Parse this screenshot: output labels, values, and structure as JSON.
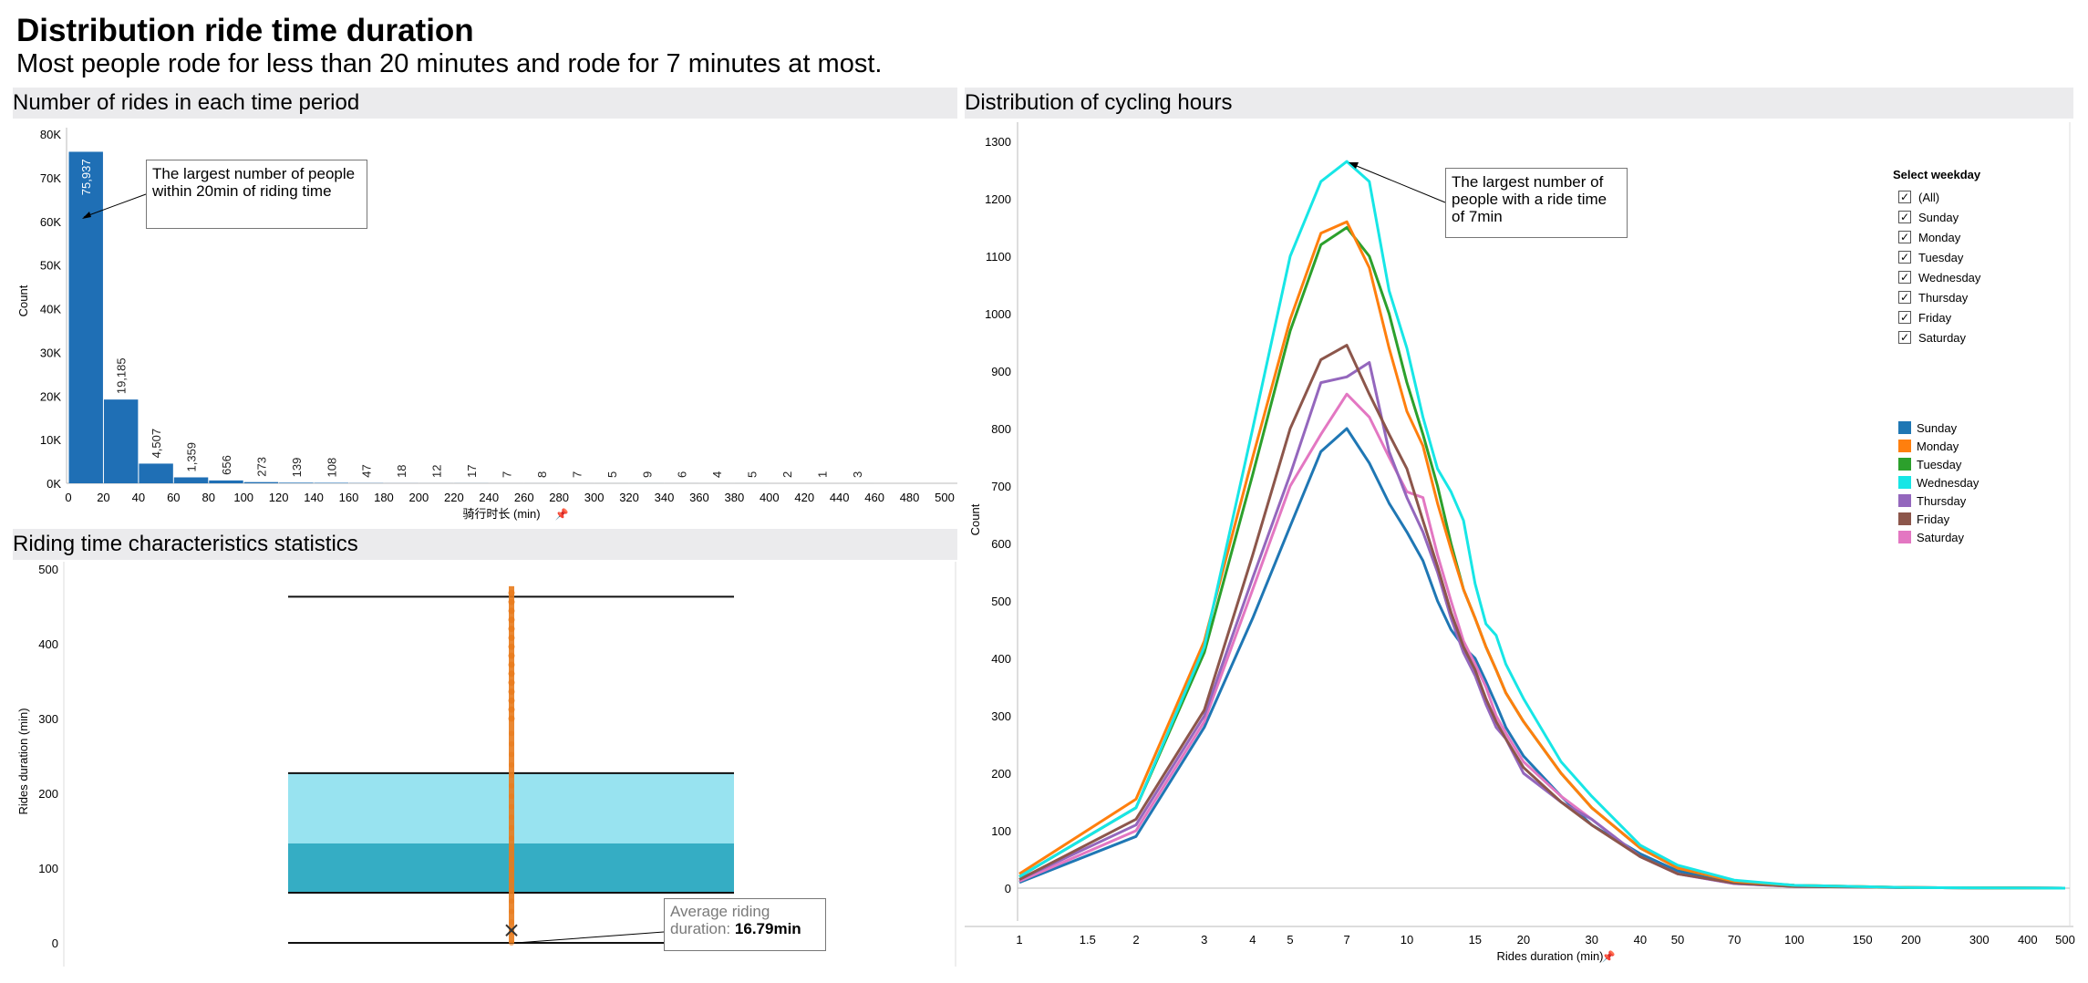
{
  "page": {
    "title": "Distribution ride time duration",
    "subtitle": "Most people rode for less than 20 minutes and rode for 7 minutes at most."
  },
  "panels": {
    "histogram_title": "Number of rides in each time period",
    "boxplot_title": "Riding time characteristics statistics",
    "lines_title": "Distribution of cycling hours"
  },
  "annotations": {
    "histogram": "The largest number of people within 20min of riding time",
    "lines": "The largest number of people with a ride time of 7min",
    "boxplot_label": "Average riding duration:",
    "boxplot_value": "16.79min"
  },
  "filter": {
    "title": "Select weekday",
    "items": [
      "(All)",
      "Sunday",
      "Monday",
      "Tuesday",
      "Wednesday",
      "Thursday",
      "Friday",
      "Saturday"
    ]
  },
  "colors": {
    "bar": "#1f6fb5",
    "Sunday": "#1f77b4",
    "Monday": "#ff7f0e",
    "Tuesday": "#2ca02c",
    "Wednesday": "#17e6e6",
    "Thursday": "#9467bd",
    "Friday": "#8c564b",
    "Saturday": "#e377c2",
    "box_upper": "#98e3f0",
    "box_lower": "#35adc4",
    "points": "#e87b1c"
  },
  "chart_data": [
    {
      "type": "bar",
      "xlabel": "骑行时长 (min)",
      "ylabel": "Count",
      "x_ticks": [
        "0",
        "20",
        "40",
        "60",
        "80",
        "100",
        "120",
        "140",
        "160",
        "180",
        "200",
        "220",
        "240",
        "260",
        "280",
        "300",
        "320",
        "340",
        "360",
        "380",
        "400",
        "420",
        "440",
        "460",
        "480",
        "500"
      ],
      "y_ticks": [
        "0K",
        "10K",
        "20K",
        "30K",
        "40K",
        "50K",
        "60K",
        "70K",
        "80K"
      ],
      "ylim": [
        0,
        80000
      ],
      "bin_width": 20,
      "bins": [
        0,
        20,
        40,
        60,
        80,
        100,
        120,
        140,
        160,
        180,
        200,
        220,
        240,
        260,
        280,
        300,
        320,
        340,
        360,
        380,
        400,
        420,
        440,
        460
      ],
      "values": [
        75937,
        19185,
        4507,
        1359,
        656,
        273,
        139,
        108,
        47,
        18,
        12,
        17,
        7,
        8,
        7,
        5,
        9,
        6,
        4,
        5,
        2,
        1,
        3,
        0
      ],
      "labels": [
        "75,937",
        "19,185",
        "4,507",
        "1,359",
        "656",
        "273",
        "139",
        "108",
        "47",
        "18",
        "12",
        "17",
        "7",
        "8",
        "7",
        "5",
        "9",
        "6",
        "4",
        "5",
        "2",
        "1",
        "3",
        ""
      ]
    },
    {
      "type": "box",
      "ylabel": "Rides duration (min)",
      "y_ticks": [
        "0",
        "100",
        "200",
        "300",
        "400",
        "500"
      ],
      "ylim": [
        0,
        500
      ],
      "whisker_low": 0,
      "q1": 67,
      "median": 133,
      "q3": 227,
      "whisker_high": 463,
      "mean": 16.79,
      "points_min": 0,
      "points_max": 477
    },
    {
      "type": "line",
      "xlabel": "Rides duration (min)",
      "ylabel": "Count",
      "x_scale": "log",
      "x_ticks": [
        "1",
        "1.5",
        "2",
        "3",
        "4",
        "5",
        "7",
        "10",
        "15",
        "20",
        "30",
        "40",
        "50",
        "70",
        "100",
        "150",
        "200",
        "300",
        "400",
        "500"
      ],
      "y_ticks": [
        "0",
        "100",
        "200",
        "300",
        "400",
        "500",
        "600",
        "700",
        "800",
        "900",
        "1000",
        "1100",
        "1200",
        "1300"
      ],
      "ylim": [
        0,
        1300
      ],
      "series": [
        {
          "name": "Sunday",
          "x": [
            1,
            2,
            3,
            4,
            5,
            6,
            7,
            8,
            9,
            10,
            11,
            12,
            13,
            14,
            15,
            16,
            17,
            18,
            20,
            25,
            30,
            40,
            50,
            70,
            100,
            200,
            500
          ],
          "y": [
            10,
            90,
            280,
            470,
            630,
            760,
            800,
            740,
            670,
            620,
            570,
            500,
            450,
            420,
            400,
            360,
            320,
            280,
            230,
            160,
            110,
            60,
            30,
            10,
            4,
            1,
            0
          ]
        },
        {
          "name": "Monday",
          "x": [
            1,
            2,
            3,
            4,
            5,
            6,
            7,
            8,
            9,
            10,
            11,
            12,
            13,
            14,
            15,
            16,
            17,
            18,
            20,
            25,
            30,
            40,
            50,
            70,
            100,
            200,
            500
          ],
          "y": [
            25,
            155,
            430,
            750,
            990,
            1140,
            1160,
            1080,
            940,
            830,
            770,
            670,
            590,
            520,
            470,
            420,
            380,
            340,
            290,
            200,
            140,
            70,
            35,
            12,
            5,
            1,
            0
          ]
        },
        {
          "name": "Tuesday",
          "x": [
            1,
            2,
            3,
            4,
            5,
            6,
            7,
            8,
            9,
            10,
            11,
            12,
            13,
            14,
            15,
            16,
            17,
            18,
            20,
            25,
            30,
            40,
            50,
            70,
            100,
            200,
            500
          ],
          "y": [
            20,
            140,
            410,
            720,
            970,
            1120,
            1150,
            1100,
            1000,
            880,
            790,
            700,
            600,
            520,
            470,
            420,
            380,
            340,
            290,
            200,
            140,
            70,
            35,
            12,
            5,
            1,
            0
          ]
        },
        {
          "name": "Wednesday",
          "x": [
            1,
            2,
            3,
            4,
            5,
            6,
            7,
            8,
            9,
            10,
            11,
            12,
            13,
            14,
            15,
            16,
            17,
            18,
            20,
            25,
            30,
            40,
            50,
            70,
            100,
            200,
            500
          ],
          "y": [
            20,
            140,
            420,
            800,
            1100,
            1230,
            1265,
            1230,
            1040,
            940,
            820,
            730,
            690,
            640,
            530,
            460,
            440,
            390,
            330,
            220,
            160,
            75,
            40,
            14,
            5,
            1,
            0
          ]
        },
        {
          "name": "Thursday",
          "x": [
            1,
            2,
            3,
            4,
            5,
            6,
            7,
            8,
            9,
            10,
            11,
            12,
            13,
            14,
            15,
            16,
            17,
            18,
            20,
            25,
            30,
            40,
            50,
            70,
            100,
            200,
            500
          ],
          "y": [
            15,
            110,
            300,
            540,
            720,
            880,
            890,
            915,
            760,
            680,
            620,
            550,
            470,
            410,
            370,
            320,
            280,
            260,
            200,
            150,
            120,
            55,
            25,
            8,
            3,
            1,
            0
          ]
        },
        {
          "name": "Friday",
          "x": [
            1,
            2,
            3,
            4,
            5,
            6,
            7,
            8,
            9,
            10,
            11,
            12,
            13,
            14,
            15,
            16,
            17,
            18,
            20,
            25,
            30,
            40,
            50,
            70,
            100,
            200,
            500
          ],
          "y": [
            15,
            120,
            310,
            580,
            800,
            920,
            945,
            860,
            790,
            730,
            640,
            560,
            480,
            420,
            380,
            330,
            290,
            260,
            210,
            150,
            110,
            55,
            25,
            9,
            3,
            1,
            0
          ]
        },
        {
          "name": "Saturday",
          "x": [
            1,
            2,
            3,
            4,
            5,
            6,
            7,
            8,
            9,
            10,
            11,
            12,
            13,
            14,
            15,
            16,
            17,
            18,
            20,
            25,
            30,
            40,
            50,
            70,
            100,
            200,
            500
          ],
          "y": [
            12,
            100,
            290,
            520,
            700,
            790,
            860,
            820,
            750,
            690,
            680,
            580,
            500,
            430,
            390,
            350,
            300,
            270,
            220,
            160,
            120,
            55,
            25,
            8,
            3,
            1,
            0
          ]
        }
      ],
      "legend": [
        "Sunday",
        "Monday",
        "Tuesday",
        "Wednesday",
        "Thursday",
        "Friday",
        "Saturday"
      ],
      "legend_position": "right"
    }
  ]
}
